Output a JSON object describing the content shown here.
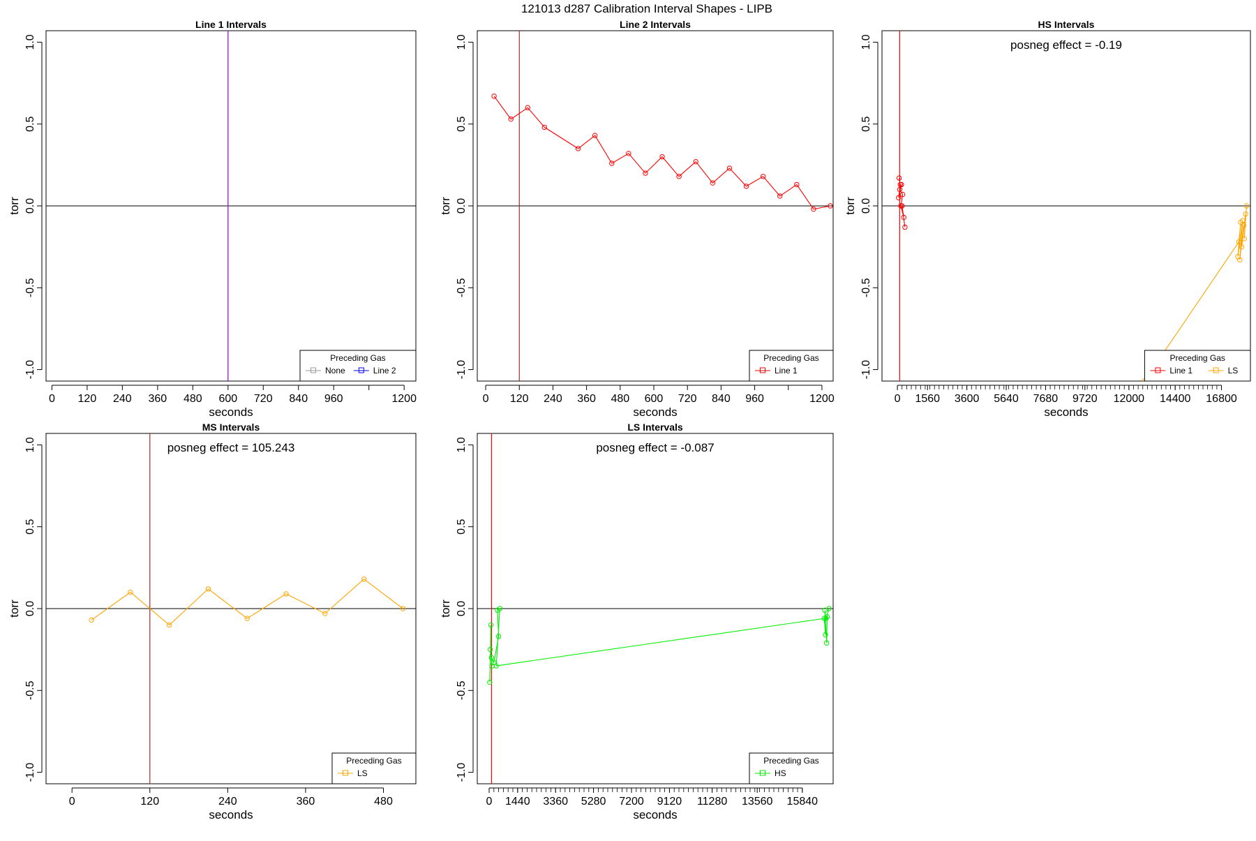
{
  "page_title": "121013   d287   Calibration Interval Shapes - LIPB",
  "colors": {
    "none": "#999999",
    "line1": "#ff0000",
    "line2": "#0000ff",
    "ls": "#ffa500",
    "hs": "#00ee00",
    "vline": "#a52a2a",
    "purple": "#a020f0"
  },
  "chart_data": [
    {
      "type": "line",
      "title": "Line 1 Intervals",
      "xlabel": "seconds",
      "ylabel": "torr",
      "xlim": [
        -20,
        1240
      ],
      "ylim": [
        -1.07,
        1.07
      ],
      "xticks": [
        0,
        120,
        240,
        360,
        480,
        600,
        720,
        840,
        960,
        1080,
        1200
      ],
      "xtick_labels": [
        "0",
        "120",
        "240",
        "360",
        "480",
        "600",
        "720",
        "840",
        "960",
        "",
        "1200"
      ],
      "yticks": [
        -1.0,
        -0.5,
        0.0,
        0.5,
        1.0
      ],
      "ytick_labels": [
        "-1.0",
        "-0.5",
        "0.0",
        "0.5",
        "1.0"
      ],
      "annotation": "",
      "vlines": [
        {
          "x": 600,
          "color": "#a52a2a"
        },
        {
          "x": 600,
          "color": "#a020f0"
        }
      ],
      "hline": 0,
      "legend": {
        "title": "Preceding Gas",
        "position": "bottom-right",
        "entries": [
          {
            "label": "None",
            "color": "#999999"
          },
          {
            "label": "Line 2",
            "color": "#0000ff"
          }
        ]
      },
      "series": []
    },
    {
      "type": "line",
      "title": "Line 2 Intervals",
      "xlabel": "seconds",
      "ylabel": "torr",
      "xlim": [
        -30,
        1240
      ],
      "ylim": [
        -1.07,
        1.07
      ],
      "xticks": [
        0,
        120,
        240,
        360,
        480,
        600,
        720,
        840,
        960,
        1080,
        1200
      ],
      "xtick_labels": [
        "0",
        "120",
        "240",
        "360",
        "480",
        "600",
        "720",
        "840",
        "960",
        "",
        "1200"
      ],
      "yticks": [
        -1.0,
        -0.5,
        0.0,
        0.5,
        1.0
      ],
      "ytick_labels": [
        "-1.0",
        "-0.5",
        "0.0",
        "0.5",
        "1.0"
      ],
      "annotation": "",
      "vlines": [
        {
          "x": 120,
          "color": "#a52a2a"
        }
      ],
      "hline": 0,
      "legend": {
        "title": "Preceding Gas",
        "position": "bottom-right",
        "entries": [
          {
            "label": "Line 1",
            "color": "#ff0000"
          }
        ]
      },
      "series": [
        {
          "color": "#ff0000",
          "x": [
            30,
            90,
            150,
            210,
            330,
            390,
            450,
            510,
            570,
            630,
            690,
            750,
            810,
            870,
            930,
            990,
            1050,
            1110,
            1170,
            1230
          ],
          "y": [
            0.67,
            0.53,
            0.6,
            0.48,
            0.35,
            0.43,
            0.26,
            0.32,
            0.2,
            0.3,
            0.18,
            0.27,
            0.14,
            0.23,
            0.12,
            0.18,
            0.06,
            0.13,
            -0.02,
            0.0
          ]
        }
      ]
    },
    {
      "type": "line",
      "title": "HS Intervals",
      "xlabel": "seconds",
      "ylabel": "torr",
      "xlim": [
        -800,
        18300
      ],
      "ylim": [
        -1.07,
        1.07
      ],
      "xticks": [
        0,
        1560,
        3600,
        5640,
        7680,
        9720,
        12000,
        14400,
        16800
      ],
      "xtick_labels": [
        "0",
        "1560",
        "3600",
        "5640",
        "7680",
        "9720",
        "12000",
        "14400",
        "16800"
      ],
      "minor_tick_step": 240,
      "yticks": [
        -1.0,
        -0.5,
        0.0,
        0.5,
        1.0
      ],
      "ytick_labels": [
        "-1.0",
        "-0.5",
        "0.0",
        "0.5",
        "1.0"
      ],
      "annotation": "posneg effect = -0.19",
      "vlines": [
        {
          "x": 120,
          "color": "#ff0000"
        }
      ],
      "hline": 0,
      "legend": {
        "title": "Preceding Gas",
        "position": "bottom-right",
        "entries": [
          {
            "label": "Line 1",
            "color": "#ff0000"
          },
          {
            "label": "LS",
            "color": "#ffa500"
          }
        ]
      },
      "series": [
        {
          "color": "#ff0000",
          "x": [
            90,
            150,
            60,
            210,
            120,
            270,
            180,
            330,
            240,
            390
          ],
          "y": [
            0.17,
            0.13,
            0.05,
            0.13,
            0.1,
            0.07,
            0.0,
            -0.07,
            0.0,
            -0.13
          ]
        },
        {
          "color": "#ffa500",
          "x": [
            12800,
            17700,
            17800,
            17650,
            17900,
            17750,
            17950,
            17850,
            18050,
            17980,
            18100
          ],
          "y": [
            -1.07,
            -0.22,
            -0.1,
            -0.31,
            -0.09,
            -0.33,
            -0.12,
            -0.25,
            -0.05,
            -0.2,
            0.0
          ]
        }
      ]
    },
    {
      "type": "line",
      "title": "MS Intervals",
      "xlabel": "seconds",
      "ylabel": "torr",
      "xlim": [
        -40,
        530
      ],
      "ylim": [
        -1.07,
        1.07
      ],
      "xticks": [
        0,
        120,
        240,
        360,
        480
      ],
      "xtick_labels": [
        "0",
        "120",
        "240",
        "360",
        "480"
      ],
      "yticks": [
        -1.0,
        -0.5,
        0.0,
        0.5,
        1.0
      ],
      "ytick_labels": [
        "-1.0",
        "-0.5",
        "0.0",
        "0.5",
        "1.0"
      ],
      "annotation": "posneg effect = 105.243",
      "vlines": [
        {
          "x": 120,
          "color": "#a52a2a"
        }
      ],
      "hline": 0,
      "legend": {
        "title": "Preceding Gas",
        "position": "bottom-right",
        "entries": [
          {
            "label": "LS",
            "color": "#ffa500"
          }
        ]
      },
      "series": [
        {
          "color": "#ffa500",
          "x": [
            30,
            90,
            150,
            210,
            270,
            330,
            390,
            450,
            510
          ],
          "y": [
            -0.07,
            0.1,
            -0.1,
            0.12,
            -0.06,
            0.09,
            -0.03,
            0.18,
            0.0
          ]
        }
      ]
    },
    {
      "type": "line",
      "title": "LS Intervals",
      "xlabel": "seconds",
      "ylabel": "torr",
      "xlim": [
        -600,
        17400
      ],
      "ylim": [
        -1.07,
        1.07
      ],
      "xticks": [
        0,
        1440,
        3360,
        5280,
        7200,
        9120,
        11280,
        13560,
        15840
      ],
      "xtick_labels": [
        "0",
        "1440",
        "3360",
        "5280",
        "7200",
        "9120",
        "11280",
        "13560",
        "15840"
      ],
      "minor_tick_step": 240,
      "yticks": [
        -1.0,
        -0.5,
        0.0,
        0.5,
        1.0
      ],
      "ytick_labels": [
        "-1.0",
        "-0.5",
        "0.0",
        "0.5",
        "1.0"
      ],
      "annotation": "posneg effect = -0.087",
      "vlines": [
        {
          "x": 120,
          "color": "#ff0000"
        }
      ],
      "hline": 0,
      "legend": {
        "title": "Preceding Gas",
        "position": "bottom-right",
        "entries": [
          {
            "label": "HS",
            "color": "#00ee00"
          }
        ]
      },
      "series": [
        {
          "color": "#00ee00",
          "x": [
            30,
            90,
            60,
            150,
            120,
            240,
            480,
            420,
            540,
            360,
            16950,
            17010,
            16980,
            17070,
            17100,
            17040,
            17190
          ],
          "y": [
            -0.45,
            -0.1,
            -0.25,
            -0.35,
            -0.3,
            -0.33,
            -0.17,
            -0.01,
            0.0,
            -0.35,
            -0.06,
            -0.16,
            -0.01,
            -0.21,
            -0.05,
            -0.06,
            0.0
          ]
        }
      ]
    }
  ]
}
